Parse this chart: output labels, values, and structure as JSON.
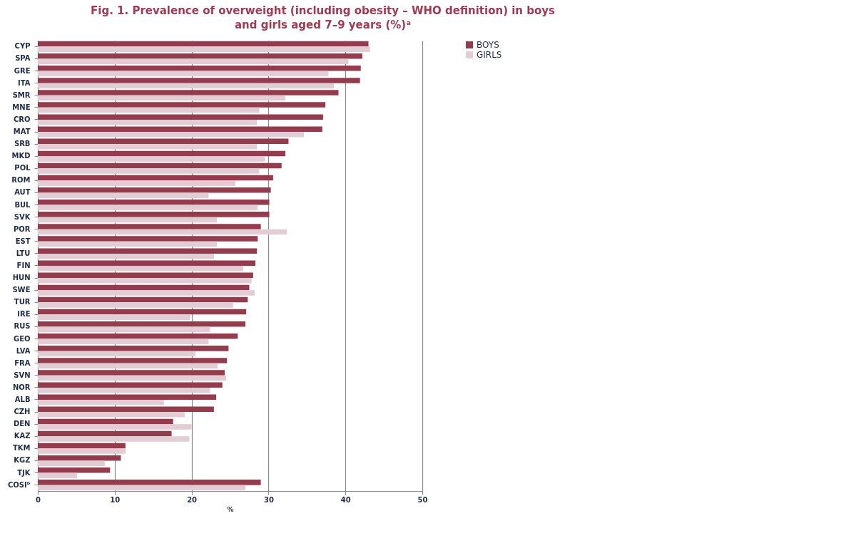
{
  "chart_data": {
    "type": "bar",
    "orientation": "horizontal",
    "title": "Fig. 1. Prevalence of overweight (including obesity – WHO definition) in boys and girls aged 7–9 years (%)ᵃ",
    "xlabel": "%",
    "categories": [
      "CYP",
      "SPA",
      "GRE",
      "ITA",
      "SMR",
      "MNE",
      "CRO",
      "MAT",
      "SRB",
      "MKD",
      "POL",
      "ROM",
      "AUT",
      "BUL",
      "SVK",
      "POR",
      "EST",
      "LTU",
      "FIN",
      "HUN",
      "SWE",
      "TUR",
      "IRE",
      "RUS",
      "GEO",
      "LVA",
      "FRA",
      "SVN",
      "NOR",
      "ALB",
      "CZH",
      "DEN",
      "KAZ",
      "TKM",
      "KGZ",
      "TJK",
      "COSIᵇ"
    ],
    "series": [
      {
        "name": "BOYS",
        "color": "#943b4e",
        "values": [
          43.0,
          42.2,
          42.0,
          41.9,
          39.1,
          37.4,
          37.1,
          37.0,
          32.6,
          32.2,
          31.7,
          30.6,
          30.3,
          30.1,
          30.1,
          29.0,
          28.6,
          28.5,
          28.3,
          28.0,
          27.5,
          27.3,
          27.1,
          27.0,
          26.0,
          24.8,
          24.6,
          24.3,
          24.0,
          23.2,
          22.9,
          17.6,
          17.4,
          11.4,
          10.8,
          9.4,
          29.0
        ]
      },
      {
        "name": "GIRLS",
        "color": "#e2cdd4",
        "values": [
          43.2,
          40.4,
          37.8,
          38.5,
          32.2,
          28.8,
          28.5,
          34.6,
          28.5,
          29.5,
          28.8,
          25.7,
          22.2,
          28.6,
          23.3,
          32.4,
          23.3,
          22.9,
          26.7,
          27.8,
          28.2,
          25.4,
          19.8,
          22.4,
          22.2,
          20.5,
          23.4,
          24.5,
          22.4,
          16.4,
          19.1,
          20.0,
          19.7,
          11.4,
          8.7,
          5.1,
          27.0
        ]
      }
    ],
    "xlim": [
      0,
      50
    ],
    "xticks": [
      0,
      10,
      20,
      30,
      40,
      50
    ],
    "grid": "x",
    "legend": "top right"
  }
}
